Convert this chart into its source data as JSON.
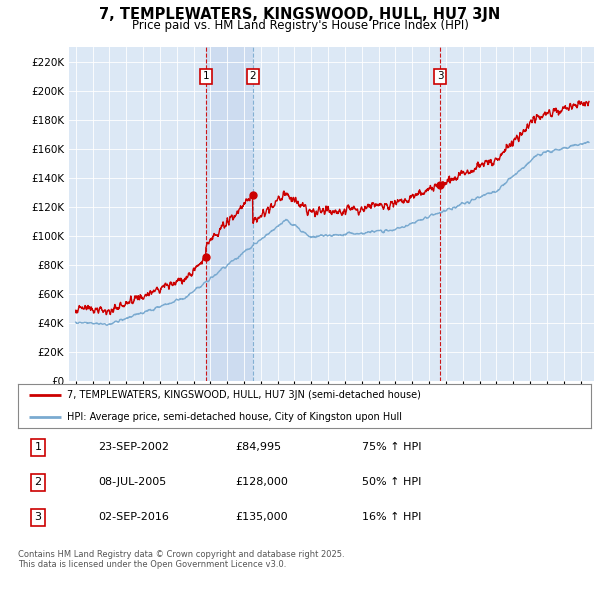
{
  "title": "7, TEMPLEWATERS, KINGSWOOD, HULL, HU7 3JN",
  "subtitle": "Price paid vs. HM Land Registry's House Price Index (HPI)",
  "plot_bg_color": "#dce8f5",
  "red_line_color": "#cc0000",
  "blue_line_color": "#7aaad0",
  "shade_color": "#c8d8ee",
  "sale_markers": [
    {
      "label": "1",
      "date_num": 2002.73,
      "price": 84995
    },
    {
      "label": "2",
      "date_num": 2005.52,
      "price": 128000
    },
    {
      "label": "3",
      "date_num": 2016.67,
      "price": 135000
    }
  ],
  "vline_dates": [
    2002.73,
    2016.67
  ],
  "vline2_date": 2005.52,
  "ylim": [
    0,
    230000
  ],
  "ytick_step": 20000,
  "legend_entries": [
    "7, TEMPLEWATERS, KINGSWOOD, HULL, HU7 3JN (semi-detached house)",
    "HPI: Average price, semi-detached house, City of Kingston upon Hull"
  ],
  "table_rows": [
    [
      "1",
      "23-SEP-2002",
      "£84,995",
      "75% ↑ HPI"
    ],
    [
      "2",
      "08-JUL-2005",
      "£128,000",
      "50% ↑ HPI"
    ],
    [
      "3",
      "02-SEP-2016",
      "£135,000",
      "16% ↑ HPI"
    ]
  ],
  "footer": "Contains HM Land Registry data © Crown copyright and database right 2025.\nThis data is licensed under the Open Government Licence v3.0."
}
